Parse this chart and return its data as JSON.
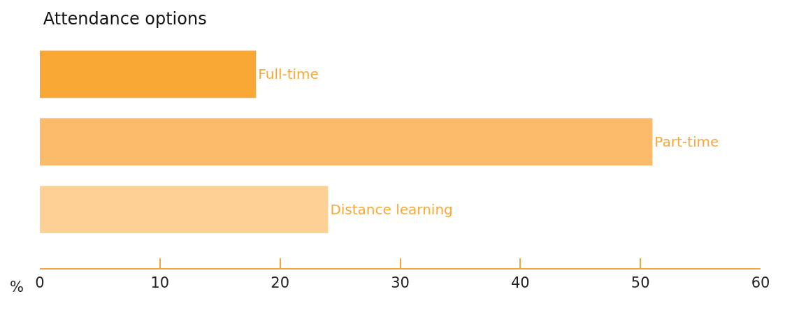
{
  "chart_data": {
    "type": "bar",
    "orientation": "horizontal",
    "title": "Attendance options",
    "xlabel": "%",
    "categories": [
      "Full-time",
      "Part-time",
      "Distance learning"
    ],
    "values": [
      18,
      51,
      24
    ],
    "colors": [
      "#f9a836",
      "#fbbb6a",
      "#fdd095"
    ],
    "xlim": [
      0,
      60
    ],
    "xticks": [
      0,
      10,
      20,
      30,
      40,
      50,
      60
    ],
    "tick_labels": "x"
  }
}
